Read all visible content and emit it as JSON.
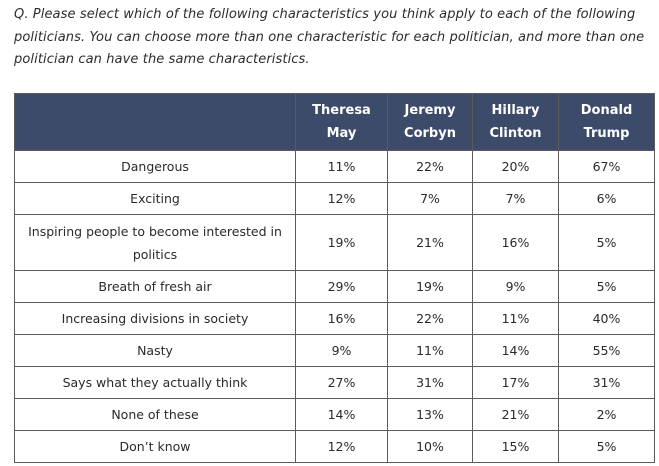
{
  "question": "Q. Please select which of the following characteristics you think apply to each of the following politicians. You can choose more than one characteristic for each politician, and more than one politician can have the same characteristics.",
  "table": {
    "headers": [
      "",
      "Theresa May",
      "Jeremy Corbyn",
      "Hillary Clinton",
      "Donald Trump"
    ],
    "rows": [
      {
        "label": "Dangerous",
        "values": [
          "11%",
          "22%",
          "20%",
          "67%"
        ]
      },
      {
        "label": "Exciting",
        "values": [
          "12%",
          "7%",
          "7%",
          "6%"
        ]
      },
      {
        "label": "Inspiring people to become interested in politics",
        "values": [
          "19%",
          "21%",
          "16%",
          "5%"
        ]
      },
      {
        "label": "Breath of fresh air",
        "values": [
          "29%",
          "19%",
          "9%",
          "5%"
        ]
      },
      {
        "label": "Increasing divisions in society",
        "values": [
          "16%",
          "22%",
          "11%",
          "40%"
        ]
      },
      {
        "label": "Nasty",
        "values": [
          "9%",
          "11%",
          "14%",
          "55%"
        ]
      },
      {
        "label": "Says what they actually think",
        "values": [
          "27%",
          "31%",
          "17%",
          "31%"
        ]
      },
      {
        "label": "None of these",
        "values": [
          "14%",
          "13%",
          "21%",
          "2%"
        ]
      },
      {
        "label": "Don’t know",
        "values": [
          "12%",
          "10%",
          "15%",
          "5%"
        ]
      }
    ]
  },
  "colors": {
    "header_bg": "#3d4b6b",
    "header_text": "#ffffff",
    "border": "#5b5b5b"
  }
}
